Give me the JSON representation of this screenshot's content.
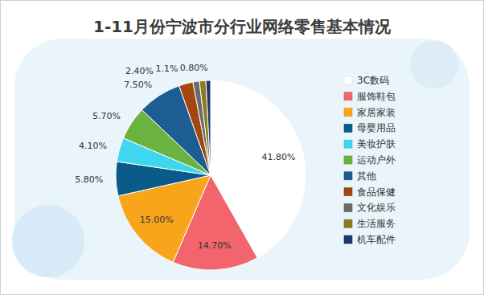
{
  "chart_data": {
    "type": "pie",
    "title": "1-11月份宁波市分行业网络零售基本情况",
    "categories": [
      "3C数码",
      "服饰鞋包",
      "家居家装",
      "母婴用品",
      "美妆护肤",
      "运动户外",
      "其他",
      "食品保健",
      "文化娱乐",
      "生活服务",
      "机车配件"
    ],
    "values": [
      41.8,
      14.7,
      15,
      5.8,
      4.1,
      5.7,
      7.5,
      2.4,
      1.1,
      1.1,
      0.8
    ],
    "value_labels": [
      "41.80%",
      "14.70%",
      "15.00%",
      "5.80%",
      "4.10%",
      "5.70%",
      "7.50%",
      "2.40%",
      "1.1%",
      null,
      "0.80%"
    ],
    "colors": [
      "#ffffff",
      "#f2656c",
      "#f8a51b",
      "#0a5b8a",
      "#3fd6ef",
      "#6bb340",
      "#1d5d92",
      "#a2470f",
      "#6b6b6b",
      "#8c7b1f",
      "#1f3a6a"
    ],
    "data_labels": true,
    "legend": "right"
  }
}
